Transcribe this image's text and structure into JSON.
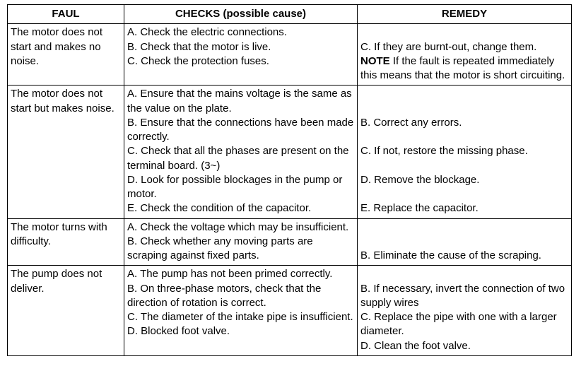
{
  "table": {
    "headers": {
      "faul": "FAUL",
      "checks": "CHECKS (possible cause)",
      "remedy": "REMEDY"
    },
    "rows": [
      {
        "faul": "The motor does not start and makes no noise.",
        "checks": "A.  Check the electric connections.\nB.  Check that the motor is live.\nC.  Check the protection fuses.",
        "remedy_pre": "\nC. If they are burnt-out, change them.\n",
        "remedy_note": "NOTE",
        "remedy_post": " If the fault is repeated immediately this means that the motor is short circuiting."
      },
      {
        "faul": "The motor does not start but makes noise.",
        "checks": "A.   Ensure that the mains voltage is the same as the value on the plate.\nB.   Ensure that the connections have been made correctly.\nC.   Check that all the phases are present on the terminal board. (3~)\nD.   Look for possible blockages in the pump or motor.\nE.   Check the condition of the capacitor.",
        "remedy": "\n\nB.   Correct any errors.\n\nC.   If not, restore the missing phase.\n\nD.   Remove the blockage.\n\nE.   Replace the capacitor."
      },
      {
        "faul": "The motor turns with difficulty.",
        "checks": "A.   Check   the voltage which may be insufficient.\nB.   Check whether any moving parts are scraping against fixed parts.",
        "remedy": "\n\nB. Eliminate the cause of the scraping."
      },
      {
        "faul": "The pump does not deliver.",
        "checks": "A.   The pump has not been primed correctly.\nB.   On three-phase motors, check that the direction of rotation is correct.\nC.   The diameter of the intake pipe is insufficient.\nD.   Blocked foot valve.",
        "remedy": "\nB.   If necessary, invert the connection of two supply wires\nC.   Replace the pipe with one with a larger diameter.\nD.   Clean the foot valve."
      }
    ]
  }
}
